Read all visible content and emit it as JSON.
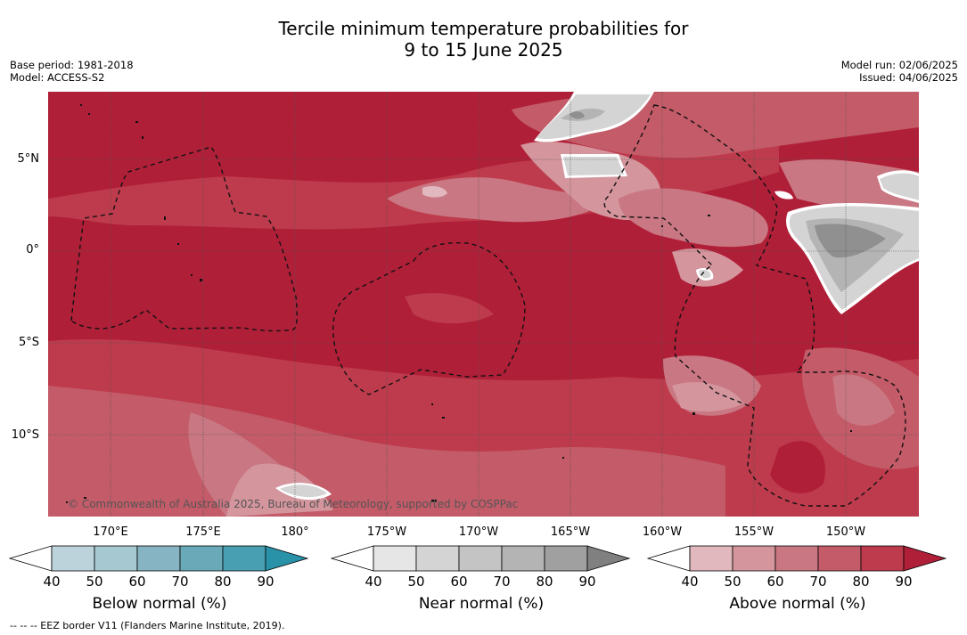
{
  "title_line1": "Tercile minimum temperature probabilities for",
  "title_line2": "9 to 15 June 2025",
  "base_period": "Base period: 1981-2018",
  "model": "Model: ACCESS-S2",
  "model_run": "Model run: 02/06/2025",
  "issued": "Issued: 04/06/2025",
  "lat_labels": [
    "5°N",
    "0°",
    "5°S",
    "10°S"
  ],
  "lon_labels": [
    "170°E",
    "175°E",
    "180°",
    "175°W",
    "170°W",
    "165°W",
    "160°W",
    "155°W",
    "150°W"
  ],
  "copyright": "© Commonwealth of Australia 2025, Bureau of Meteorology, supported by COSPPac",
  "colorbars": [
    {
      "label": "Below normal (%)",
      "ticks": [
        "40",
        "50",
        "60",
        "70",
        "80",
        "90"
      ],
      "colors": [
        "#bdd3dc",
        "#a6c8d0",
        "#87b4c2",
        "#6aaab8",
        "#479fb1",
        "#2a92a8"
      ]
    },
    {
      "label": "Near normal (%)",
      "ticks": [
        "40",
        "50",
        "60",
        "70",
        "80",
        "90"
      ],
      "colors": [
        "#e6e6e6",
        "#d4d4d4",
        "#c4c4c4",
        "#b4b4b4",
        "#a0a0a0",
        "#808080"
      ]
    },
    {
      "label": "Above normal (%)",
      "ticks": [
        "40",
        "50",
        "60",
        "70",
        "80",
        "90"
      ],
      "colors": [
        "#e0b8bd",
        "#d4959d",
        "#c97782",
        "#c35b68",
        "#bd3b4c",
        "#b01f38"
      ]
    }
  ],
  "footnote": "--  --  -- EEZ border V11 (Flanders Marine Institute, 2019)."
}
